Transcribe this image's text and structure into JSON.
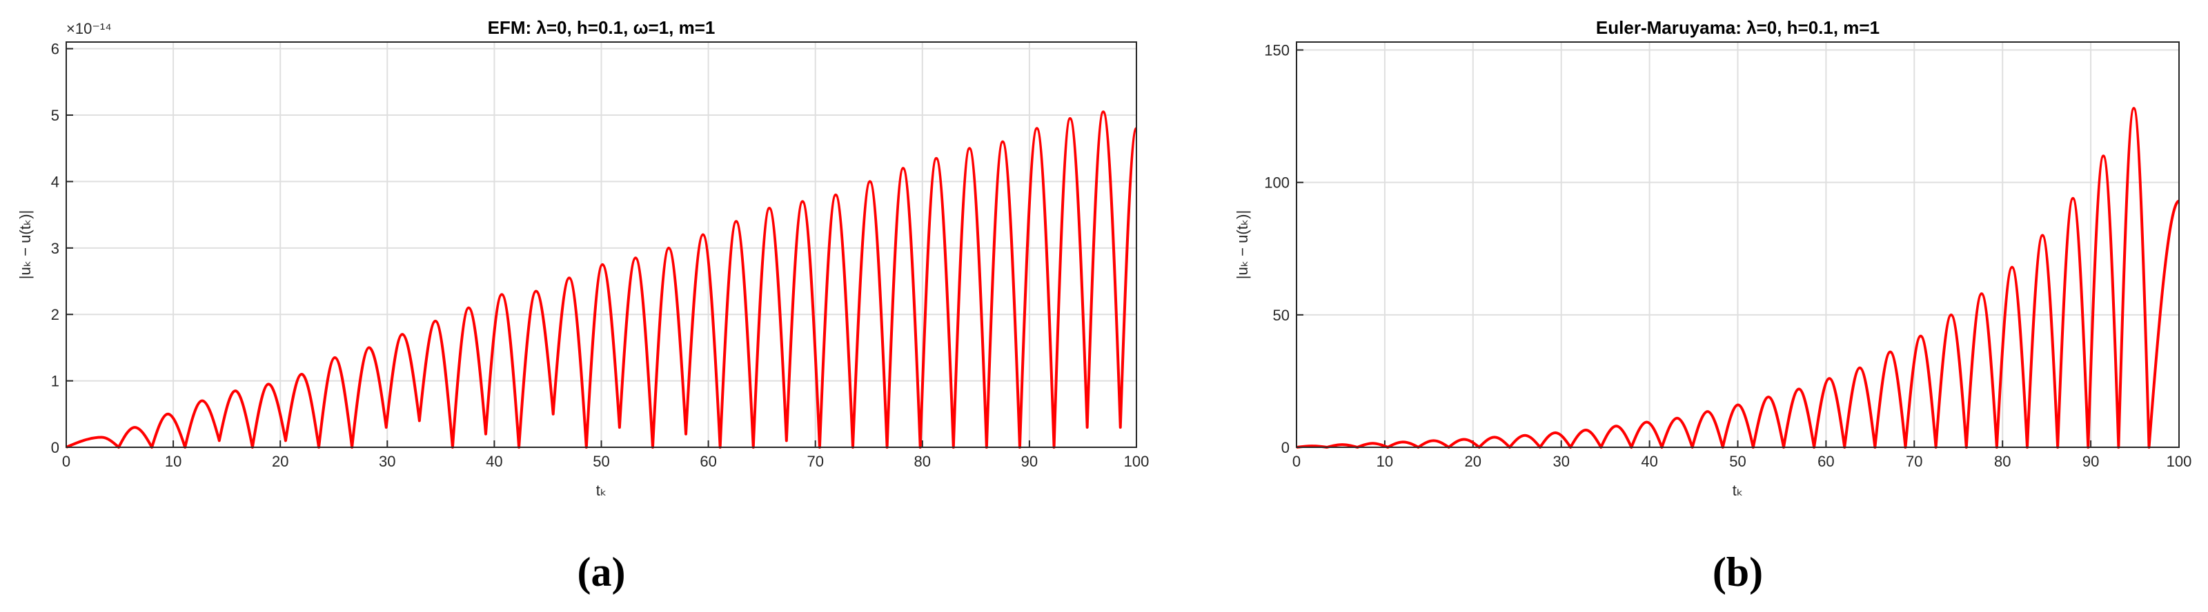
{
  "chart_data": [
    {
      "type": "line",
      "title": "EFM:  λ=0, h=0.1, ω=1, m=1",
      "caption": "(a)",
      "xlabel": "tₖ",
      "ylabel": "|uₖ − u(tₖ)|",
      "y_offset_label": "×10⁻¹⁴",
      "color": "#ff0000",
      "grid": true,
      "xlim": [
        0,
        100
      ],
      "xticks": [
        0,
        10,
        20,
        30,
        40,
        50,
        60,
        70,
        80,
        90,
        100
      ],
      "ylim": [
        0,
        6.1
      ],
      "yticks": [
        0,
        1,
        2,
        3,
        4,
        5,
        6
      ],
      "x": [
        0,
        3.3,
        4.9,
        6.4,
        8.0,
        9.5,
        11.1,
        12.7,
        14.3,
        15.8,
        17.4,
        18.9,
        20.5,
        22.0,
        23.6,
        25.1,
        26.7,
        28.3,
        29.9,
        31.4,
        33.0,
        34.5,
        36.1,
        37.6,
        39.2,
        40.7,
        42.3,
        43.9,
        45.5,
        47.0,
        48.6,
        50.1,
        51.7,
        53.2,
        54.8,
        56.3,
        57.9,
        59.5,
        61.1,
        62.6,
        64.2,
        65.7,
        67.3,
        68.8,
        70.4,
        71.9,
        73.5,
        75.1,
        76.7,
        78.2,
        79.8,
        81.3,
        82.9,
        84.4,
        86.0,
        87.5,
        89.1,
        90.7,
        92.3,
        93.8,
        95.4,
        96.9,
        98.5,
        100
      ],
      "values": [
        0,
        0.15,
        0,
        0.3,
        0,
        0.5,
        0,
        0.7,
        0.1,
        0.85,
        0,
        0.95,
        0.1,
        1.1,
        0,
        1.35,
        0,
        1.5,
        0.3,
        1.7,
        0.4,
        1.9,
        0,
        2.1,
        0.2,
        2.3,
        0,
        2.35,
        0.5,
        2.55,
        0,
        2.75,
        0.3,
        2.85,
        0,
        3.0,
        0.2,
        3.2,
        0,
        3.4,
        0,
        3.6,
        0.1,
        3.7,
        0,
        3.8,
        0,
        4.0,
        0,
        4.2,
        0,
        4.35,
        0,
        4.5,
        0,
        4.6,
        0,
        4.8,
        0,
        4.95,
        0.3,
        5.05,
        0.3,
        4.8
      ]
    },
    {
      "type": "line",
      "title": "Euler-Maruyama:  λ=0, h=0.1, m=1",
      "caption": "(b)",
      "xlabel": "tₖ",
      "ylabel": "|uₖ − u(tₖ)|",
      "color": "#ff0000",
      "grid": true,
      "xlim": [
        0,
        100
      ],
      "xticks": [
        0,
        10,
        20,
        30,
        40,
        50,
        60,
        70,
        80,
        90,
        100
      ],
      "ylim": [
        0,
        153
      ],
      "yticks": [
        0,
        50,
        100,
        150
      ],
      "x": [
        0,
        1.73,
        3.45,
        5.18,
        6.9,
        8.63,
        10.35,
        12.08,
        13.8,
        15.53,
        17.25,
        18.98,
        20.7,
        22.43,
        24.15,
        25.88,
        27.6,
        29.33,
        31.05,
        32.78,
        34.5,
        36.23,
        37.95,
        39.68,
        41.4,
        43.13,
        44.85,
        46.58,
        48.3,
        50.03,
        51.75,
        53.48,
        55.2,
        56.93,
        58.65,
        60.38,
        62.1,
        63.83,
        65.55,
        67.28,
        69,
        70.73,
        72.45,
        74.18,
        75.9,
        77.63,
        79.35,
        81.08,
        82.8,
        84.53,
        86.25,
        87.98,
        89.7,
        91.43,
        93.15,
        94.88,
        96.6,
        100
      ],
      "values": [
        0,
        0.5,
        0,
        1,
        0,
        1.5,
        0,
        2,
        0,
        2.5,
        0,
        3,
        0,
        3.8,
        0,
        4.5,
        0,
        5.5,
        0,
        6.5,
        0,
        8,
        0,
        9.5,
        0,
        11,
        0,
        13.5,
        0,
        16,
        0,
        19,
        0,
        22,
        0,
        26,
        0,
        30,
        0,
        36,
        0,
        42,
        0,
        50,
        0,
        58,
        0,
        68,
        0,
        80,
        0,
        94,
        0,
        110,
        0,
        128,
        0,
        93
      ]
    }
  ]
}
